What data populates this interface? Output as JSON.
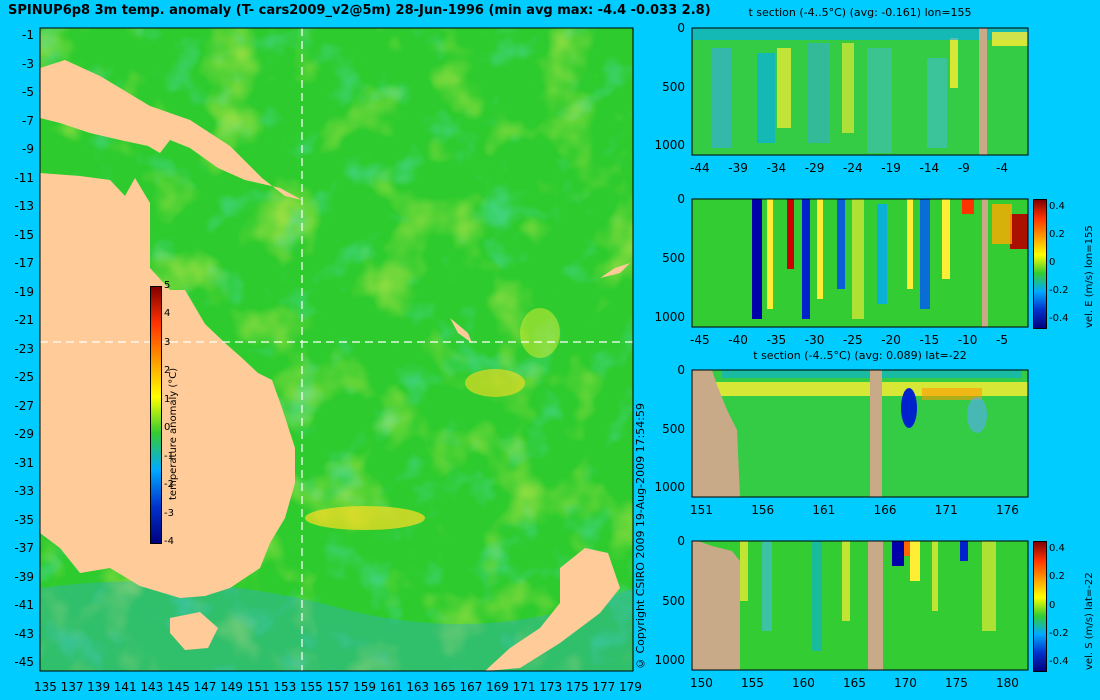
{
  "title": "SPINUP6p8 3m temp. anomaly (T- cars2009_v2@5m) 28-Jun-1996 (min avg max: -4.4 -0.033 2.8)",
  "copyright": "© Copyright CSIRO 2009   19-Aug-2009 17:54:59",
  "colors": {
    "background": "#00ccff",
    "land": "#ffcc99",
    "section_land": "#c8aa88",
    "ocean_base": "#33cc33"
  },
  "chart_data": [
    {
      "type": "heatmap",
      "name": "map",
      "title": "SPINUP6p8 3m temp. anomaly (T- cars2009_v2@5m) 28-Jun-1996 (min avg max: -4.4 -0.033 2.8)",
      "x_ticks": [
        "135",
        "137",
        "139",
        "141",
        "143",
        "145",
        "147",
        "149",
        "151",
        "153",
        "155",
        "157",
        "159",
        "161",
        "163",
        "165",
        "167",
        "169",
        "171",
        "173",
        "175",
        "177",
        "179"
      ],
      "y_ticks": [
        "-1",
        "-3",
        "-5",
        "-7",
        "-9",
        "-11",
        "-13",
        "-15",
        "-17",
        "-19",
        "-21",
        "-23",
        "-25",
        "-27",
        "-29",
        "-31",
        "-33",
        "-35",
        "-37",
        "-39",
        "-41",
        "-43",
        "-45"
      ],
      "xlim": [
        134.8,
        180
      ],
      "ylim": [
        -45,
        0.2
      ],
      "crosshair": {
        "lon": 155,
        "lat": -22
      },
      "colorbar": {
        "label": "temperature anomaly (°C)",
        "ticks": [
          "5",
          "4",
          "3",
          "2",
          "1",
          "0",
          "-1",
          "-2",
          "-3",
          "-4"
        ],
        "range": [
          -4,
          5
        ]
      }
    },
    {
      "type": "heatmap",
      "name": "t-section-lon155",
      "title": "t section (-4..5°C) (avg: -0.161) lon=155",
      "x_ticks": [
        "-44",
        "-39",
        "-34",
        "-29",
        "-24",
        "-19",
        "-14",
        "-9",
        "-4"
      ],
      "y_ticks": [
        "0",
        "500",
        "1000"
      ]
    },
    {
      "type": "heatmap",
      "name": "vel-e-lon155",
      "title": "",
      "x_ticks": [
        "-45",
        "-40",
        "-35",
        "-30",
        "-25",
        "-20",
        "-15",
        "-10",
        "-5"
      ],
      "y_ticks": [
        "0",
        "500",
        "1000"
      ],
      "colorbar": {
        "label": "vel. E (m/s) lon=155",
        "ticks": [
          "0.4",
          "0.2",
          "0",
          "-0.2",
          "-0.4"
        ],
        "range": [
          -0.4,
          0.4
        ]
      }
    },
    {
      "type": "heatmap",
      "name": "t-section-lat22",
      "title": "t section (-4..5°C) (avg: 0.089) lat=-22",
      "x_ticks": [
        "151",
        "156",
        "161",
        "166",
        "171",
        "176"
      ],
      "y_ticks": [
        "0",
        "500",
        "1000"
      ]
    },
    {
      "type": "heatmap",
      "name": "vel-s-lat22",
      "title": "",
      "x_ticks": [
        "150",
        "155",
        "160",
        "165",
        "170",
        "175",
        "180"
      ],
      "y_ticks": [
        "0",
        "500",
        "1000"
      ],
      "colorbar": {
        "label": "vel. S (m/s) lat=-22",
        "ticks": [
          "0.4",
          "0.2",
          "0",
          "-0.2",
          "-0.4"
        ],
        "range": [
          -0.4,
          0.4
        ]
      }
    }
  ]
}
